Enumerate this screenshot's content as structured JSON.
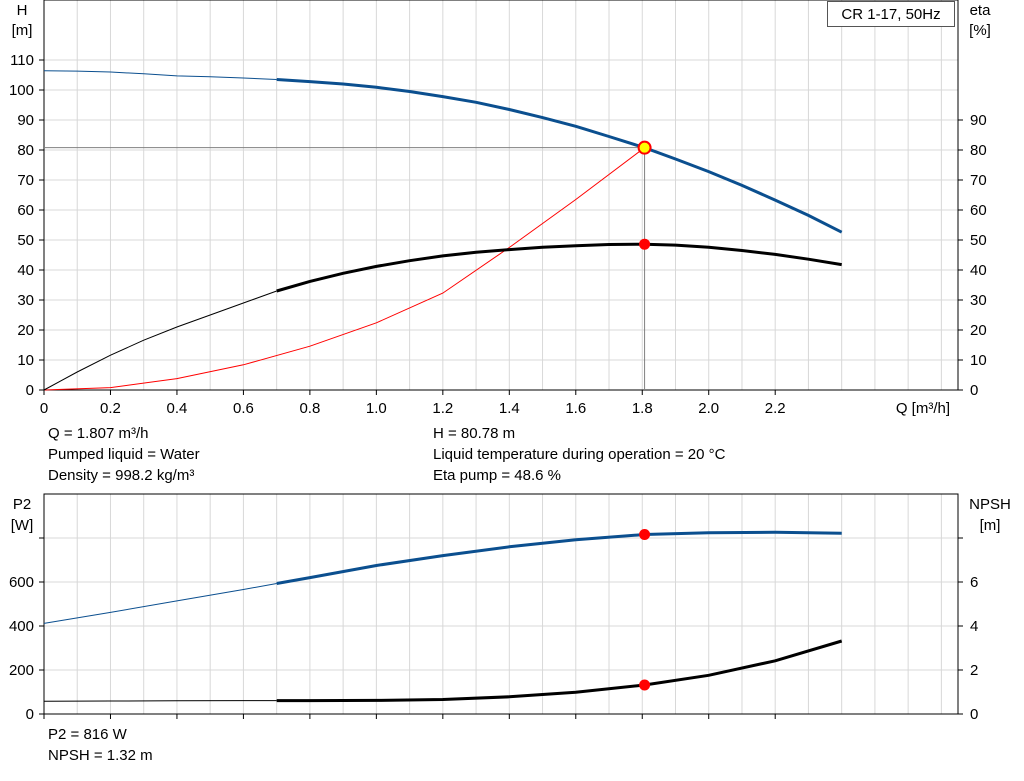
{
  "pump_label": "CR 1-17, 50Hz",
  "info": {
    "q": "Q = 1.807 m³/h",
    "liquid": "Pumped liquid = Water",
    "density": "Density = 998.2 kg/m³",
    "h": "H = 80.78 m",
    "temp": "Liquid temperature during operation = 20 °C",
    "eta": "Eta pump = 48.6 %",
    "p2": "P2 = 816 W",
    "npsh": "NPSH = 1.32 m"
  },
  "axes": {
    "top_left_label": [
      "H",
      "[m]"
    ],
    "top_right_label": [
      "eta",
      "[%]"
    ],
    "x_label": "Q [m³/h]",
    "bottom_left_label": [
      "P2",
      "[W]"
    ],
    "bottom_right_label": [
      "NPSH",
      "[m]"
    ]
  },
  "chart_data": [
    {
      "type": "line",
      "x_label": "Q [m³/h]",
      "xlim": [
        0,
        2.75
      ],
      "x_ticks": [
        0,
        0.2,
        0.4,
        0.6,
        0.8,
        1.0,
        1.2,
        1.4,
        1.6,
        1.8,
        2.0,
        2.2
      ],
      "x_tick_labels": [
        "0",
        "0.2",
        "0.4",
        "0.6",
        "0.8",
        "1.0",
        "1.2",
        "1.4",
        "1.6",
        "1.8",
        "2.0",
        "2.2"
      ],
      "y_label": "H [m]",
      "ylim": [
        0,
        110
      ],
      "y_ticks": [
        0,
        10,
        20,
        30,
        40,
        50,
        60,
        70,
        80,
        90,
        100,
        110
      ],
      "y2_label": "eta [%]",
      "y2lim": [
        0,
        110
      ],
      "y2_ticks": [
        0,
        10,
        20,
        30,
        40,
        50,
        60,
        70,
        80,
        90
      ],
      "grid": true,
      "series": [
        {
          "axis": "left",
          "color": "#0b4f8f",
          "x": [
            0,
            0.1,
            0.2,
            0.3,
            0.4,
            0.5,
            0.6,
            0.7,
            0.8,
            0.9,
            1.0,
            1.1,
            1.2,
            1.3,
            1.4,
            1.5,
            1.6,
            1.7,
            1.807,
            1.9,
            2.0,
            2.1,
            2.2,
            2.3,
            2.4
          ],
          "y": [
            106.4,
            106.3,
            106.0,
            105.4,
            104.7,
            104.4,
            104.0,
            103.5,
            102.8,
            102.0,
            100.9,
            99.5,
            97.8,
            95.9,
            93.5,
            90.8,
            87.9,
            84.5,
            80.78,
            77.0,
            72.8,
            68.2,
            63.3,
            58.2,
            52.6
          ]
        },
        {
          "axis": "right",
          "color": "#000000",
          "x": [
            0,
            0.1,
            0.2,
            0.3,
            0.4,
            0.5,
            0.6,
            0.7,
            0.8,
            0.9,
            1.0,
            1.1,
            1.2,
            1.3,
            1.4,
            1.5,
            1.6,
            1.7,
            1.807,
            1.9,
            2.0,
            2.1,
            2.2,
            2.3,
            2.4
          ],
          "y": [
            0,
            6.0,
            11.6,
            16.6,
            21.0,
            25.0,
            29.0,
            33.0,
            36.2,
            38.9,
            41.2,
            43.1,
            44.7,
            45.9,
            46.8,
            47.6,
            48.1,
            48.5,
            48.6,
            48.3,
            47.6,
            46.5,
            45.2,
            43.6,
            41.8
          ]
        },
        {
          "axis": "left",
          "color": "#ff0000",
          "x": [
            0,
            0.2,
            0.4,
            0.6,
            0.8,
            1.0,
            1.2,
            1.4,
            1.6,
            1.807
          ],
          "y": [
            0,
            0.8,
            3.8,
            8.4,
            14.6,
            22.4,
            32.3,
            47.5,
            63.5,
            80.78
          ]
        }
      ],
      "duty_point": {
        "Q": 1.807,
        "H": 80.78,
        "eta": 48.6
      }
    },
    {
      "type": "line",
      "x_label": "Q [m³/h]",
      "xlim": [
        0,
        2.75
      ],
      "x_ticks": [
        0,
        0.2,
        0.4,
        0.6,
        0.8,
        1.0,
        1.2,
        1.4,
        1.6,
        1.8,
        2.0,
        2.2
      ],
      "y_label": "P2 [W]",
      "ylim": [
        0,
        900
      ],
      "y_ticks": [
        0,
        200,
        400,
        600,
        800
      ],
      "y_tick_labels": [
        "0",
        "200",
        "400",
        "600",
        ""
      ],
      "y2_label": "NPSH [m]",
      "y2lim": [
        0,
        9
      ],
      "y2_ticks": [
        0,
        2,
        4,
        6,
        8
      ],
      "y2_tick_labels": [
        "0",
        "2",
        "4",
        "6",
        ""
      ],
      "grid": true,
      "series": [
        {
          "axis": "left",
          "color": "#0b4f8f",
          "x": [
            0,
            0.2,
            0.4,
            0.6,
            0.7,
            0.8,
            1.0,
            1.2,
            1.4,
            1.6,
            1.807,
            2.0,
            2.2,
            2.4
          ],
          "y": [
            412,
            462,
            514,
            566,
            593,
            620,
            675,
            720,
            760,
            792,
            816,
            824,
            826,
            822
          ]
        },
        {
          "axis": "right",
          "color": "#000000",
          "x": [
            0,
            0.2,
            0.4,
            0.6,
            0.7,
            0.8,
            1.0,
            1.2,
            1.4,
            1.6,
            1.807,
            2.0,
            2.2,
            2.4
          ],
          "y": [
            0.58,
            0.59,
            0.6,
            0.61,
            0.61,
            0.61,
            0.62,
            0.66,
            0.78,
            0.99,
            1.32,
            1.76,
            2.42,
            3.32
          ]
        }
      ],
      "duty_point": {
        "Q": 1.807,
        "P2": 816,
        "NPSH": 1.32
      }
    }
  ]
}
